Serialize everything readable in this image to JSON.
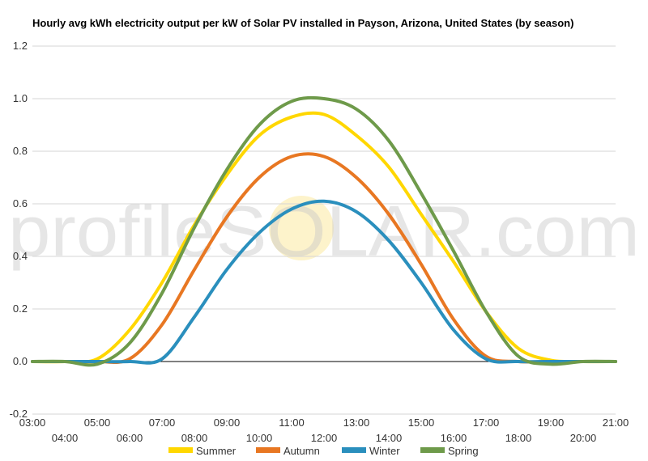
{
  "chart_data": {
    "type": "line",
    "title": "Hourly avg kWh electricity output per kW of Solar PV installed in Payson, Arizona, United States (by season)",
    "xlabel": "",
    "ylabel": "",
    "ylim": [
      -0.2,
      1.2
    ],
    "yticks": [
      "-0.2",
      "0.0",
      "0.2",
      "0.4",
      "0.6",
      "0.8",
      "1.0",
      "1.2"
    ],
    "xticks": [
      "03:00",
      "04:00",
      "05:00",
      "06:00",
      "07:00",
      "08:00",
      "09:00",
      "10:00",
      "11:00",
      "12:00",
      "13:00",
      "14:00",
      "15:00",
      "16:00",
      "17:00",
      "18:00",
      "19:00",
      "20:00",
      "21:00"
    ],
    "x": [
      3,
      4,
      5,
      6,
      7,
      8,
      9,
      10,
      11,
      12,
      13,
      14,
      15,
      16,
      17,
      18,
      19,
      20,
      21
    ],
    "grid": true,
    "legend_position": "bottom",
    "watermark": "profileSOLAR.com",
    "series": [
      {
        "name": "Summer",
        "color": "#FFD700",
        "values": [
          0,
          0,
          0.01,
          0.12,
          0.3,
          0.52,
          0.71,
          0.86,
          0.93,
          0.94,
          0.86,
          0.74,
          0.56,
          0.38,
          0.19,
          0.05,
          0.005,
          0,
          0
        ]
      },
      {
        "name": "Autumn",
        "color": "#E87722",
        "values": [
          0,
          0,
          0,
          0.01,
          0.14,
          0.35,
          0.55,
          0.7,
          0.78,
          0.78,
          0.7,
          0.56,
          0.37,
          0.16,
          0.02,
          0,
          0,
          0,
          0
        ]
      },
      {
        "name": "Winter",
        "color": "#2A8FBD",
        "values": [
          0,
          0,
          0,
          0,
          0.01,
          0.17,
          0.35,
          0.49,
          0.58,
          0.61,
          0.57,
          0.46,
          0.3,
          0.12,
          0.01,
          0,
          0,
          0,
          0
        ]
      },
      {
        "name": "Spring",
        "color": "#6E9A4A",
        "values": [
          0,
          0,
          -0.01,
          0.07,
          0.26,
          0.51,
          0.73,
          0.9,
          0.99,
          1.0,
          0.96,
          0.84,
          0.64,
          0.42,
          0.19,
          0.02,
          -0.01,
          0,
          0
        ]
      }
    ]
  }
}
